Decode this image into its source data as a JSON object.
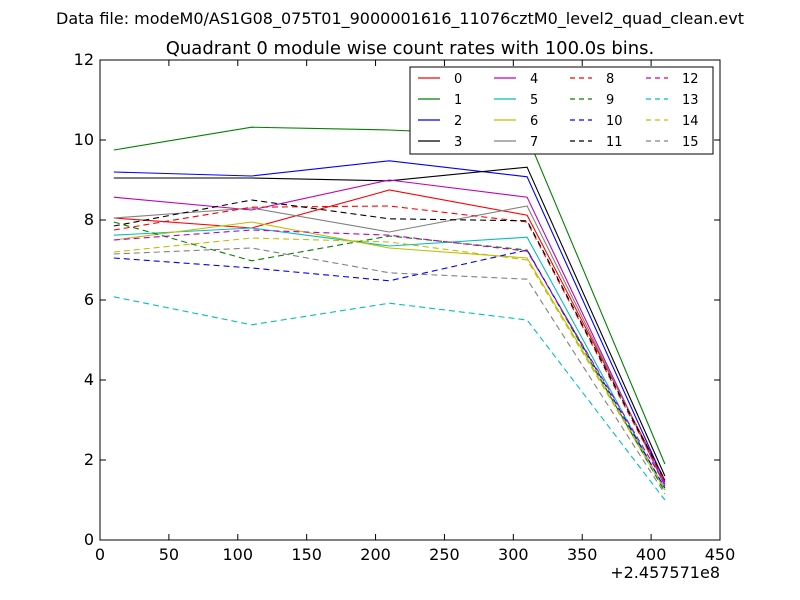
{
  "chart_data": {
    "type": "line",
    "suptitle": "Data file: modeM0/AS1G08_075T01_9000001616_11076cztM0_level2_quad_clean.evt",
    "title": "Quadrant 0 module wise count rates with 100.0s bins.",
    "xlabel": "",
    "ylabel": "",
    "x_offset_label": "+2.457571e8",
    "xlim": [
      0,
      450
    ],
    "ylim": [
      0,
      12
    ],
    "xticks": [
      0,
      50,
      100,
      150,
      200,
      250,
      300,
      350,
      400,
      450
    ],
    "yticks": [
      0,
      2,
      4,
      6,
      8,
      10,
      12
    ],
    "x": [
      10,
      110,
      210,
      310,
      410
    ],
    "legend_position": "top-right",
    "series": [
      {
        "name": "0",
        "color": "#ff0000",
        "style": "solid",
        "values": [
          8.05,
          7.8,
          8.75,
          8.12,
          1.5
        ]
      },
      {
        "name": "1",
        "color": "#008000",
        "style": "solid",
        "values": [
          9.75,
          10.32,
          10.25,
          10.1,
          1.9
        ]
      },
      {
        "name": "2",
        "color": "#0000ff",
        "style": "solid",
        "values": [
          9.2,
          9.1,
          9.48,
          9.08,
          1.45
        ]
      },
      {
        "name": "3",
        "color": "#000000",
        "style": "solid",
        "values": [
          9.05,
          9.05,
          8.98,
          9.32,
          1.6
        ]
      },
      {
        "name": "4",
        "color": "#bf00bf",
        "style": "solid",
        "values": [
          8.57,
          8.25,
          9.0,
          8.57,
          1.35
        ]
      },
      {
        "name": "5",
        "color": "#00bfbf",
        "style": "solid",
        "values": [
          7.62,
          7.8,
          7.35,
          7.57,
          1.25
        ]
      },
      {
        "name": "6",
        "color": "#bfbf00",
        "style": "solid",
        "values": [
          7.5,
          7.95,
          7.3,
          7.05,
          1.3
        ]
      },
      {
        "name": "7",
        "color": "#808080",
        "style": "solid",
        "values": [
          8.05,
          8.3,
          7.7,
          8.35,
          1.4
        ]
      },
      {
        "name": "8",
        "color": "#ff0000",
        "style": "dashed",
        "values": [
          7.75,
          8.32,
          8.35,
          7.95,
          1.45
        ]
      },
      {
        "name": "9",
        "color": "#008000",
        "style": "dashed",
        "values": [
          7.95,
          6.98,
          7.6,
          7.25,
          1.2
        ]
      },
      {
        "name": "10",
        "color": "#0000ff",
        "style": "dashed",
        "values": [
          7.05,
          6.8,
          6.48,
          7.25,
          1.3
        ]
      },
      {
        "name": "11",
        "color": "#000000",
        "style": "dashed",
        "values": [
          7.85,
          8.5,
          8.03,
          7.98,
          1.5
        ]
      },
      {
        "name": "12",
        "color": "#bf00bf",
        "style": "dashed",
        "values": [
          7.5,
          7.75,
          7.62,
          7.22,
          1.4
        ]
      },
      {
        "name": "13",
        "color": "#00bfbf",
        "style": "dashed",
        "values": [
          6.08,
          5.38,
          5.92,
          5.5,
          1.0
        ]
      },
      {
        "name": "14",
        "color": "#bfbf00",
        "style": "dashed",
        "values": [
          7.2,
          7.55,
          7.45,
          7.0,
          1.25
        ]
      },
      {
        "name": "15",
        "color": "#808080",
        "style": "dashed",
        "values": [
          7.15,
          7.3,
          6.68,
          6.52,
          1.15
        ]
      }
    ]
  }
}
